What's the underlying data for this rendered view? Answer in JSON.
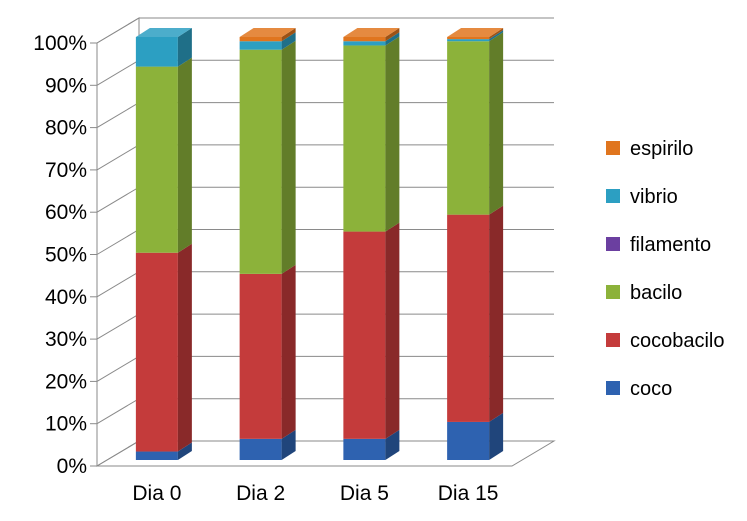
{
  "chart_data": {
    "type": "bar",
    "stacked": true,
    "percent": true,
    "three_d": true,
    "categories": [
      "Dia 0",
      "Dia 2",
      "Dia 5",
      "Dia 15"
    ],
    "series": [
      {
        "name": "coco",
        "color": "#2e62b0",
        "values": [
          2,
          5,
          5,
          9
        ]
      },
      {
        "name": "cocobacilo",
        "color": "#c43b3b",
        "values": [
          47,
          39,
          49,
          49
        ]
      },
      {
        "name": "filamento",
        "color": "#6b3fa0",
        "values": [
          0,
          0,
          0,
          0
        ]
      },
      {
        "name": "bacilo",
        "color": "#8cb23a",
        "values": [
          44,
          53,
          44,
          41
        ]
      },
      {
        "name": "vibrio",
        "color": "#2c9fc2",
        "values": [
          7,
          2,
          1,
          0.5
        ]
      },
      {
        "name": "espirilo",
        "color": "#e0751e",
        "values": [
          0,
          1,
          1,
          0.5
        ]
      }
    ],
    "y_ticks": [
      "0%",
      "10%",
      "20%",
      "30%",
      "40%",
      "50%",
      "60%",
      "70%",
      "80%",
      "90%",
      "100%"
    ],
    "ylim": [
      0,
      100
    ],
    "grid": true,
    "legend_position": "right",
    "legend_order": [
      "espirilo",
      "vibrio",
      "filamento",
      "bacilo",
      "cocobacilo",
      "coco"
    ]
  }
}
